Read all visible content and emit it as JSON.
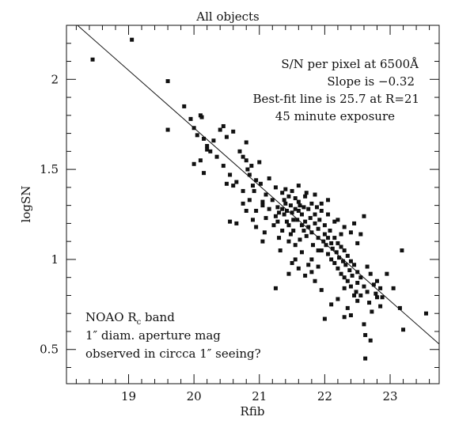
{
  "chart_data": {
    "type": "scatter",
    "title": "All objects",
    "xlabel": "Rfib",
    "ylabel": "logSN",
    "xlim": [
      18.05,
      23.75
    ],
    "ylim": [
      0.31,
      2.3
    ],
    "xticks": [
      19,
      20,
      21,
      22,
      23
    ],
    "yticks": [
      0.5,
      1,
      1.5,
      2
    ],
    "xtick_labels": [
      "19",
      "20",
      "21",
      "22",
      "23"
    ],
    "ytick_labels": [
      "0.5",
      "1",
      "1.5",
      "2"
    ],
    "grid": false,
    "annotations_top_right": [
      "S/N per pixel at 6500Å",
      "Slope is −0.32",
      "Best-fit line is 25.7 at R=21",
      "45 minute exposure"
    ],
    "annotations_bottom_left": {
      "line1_prefix": "NOAO R",
      "line1_subscript": "c",
      "line1_suffix": " band",
      "line2": "1″ diam. aperture mag",
      "line3": "observed in circca 1″ seeing?"
    },
    "fit_line": {
      "slope": -0.32,
      "intercept_at_21": 1.41,
      "from_x": 18.05,
      "to_x": 23.75
    },
    "points": [
      [
        18.45,
        2.11
      ],
      [
        19.05,
        2.22
      ],
      [
        19.6,
        1.99
      ],
      [
        19.6,
        1.72
      ],
      [
        19.85,
        1.85
      ],
      [
        19.95,
        1.78
      ],
      [
        20.0,
        1.73
      ],
      [
        20.1,
        1.8
      ],
      [
        20.12,
        1.79
      ],
      [
        20.05,
        1.69
      ],
      [
        20.15,
        1.67
      ],
      [
        20.2,
        1.63
      ],
      [
        20.25,
        1.6
      ],
      [
        20.1,
        1.55
      ],
      [
        20.0,
        1.53
      ],
      [
        20.15,
        1.48
      ],
      [
        20.4,
        1.72
      ],
      [
        20.45,
        1.74
      ],
      [
        20.5,
        1.68
      ],
      [
        20.5,
        1.42
      ],
      [
        20.6,
        1.41
      ],
      [
        20.6,
        1.71
      ],
      [
        20.7,
        1.6
      ],
      [
        20.75,
        1.57
      ],
      [
        20.8,
        1.65
      ],
      [
        20.8,
        1.55
      ],
      [
        20.82,
        1.5
      ],
      [
        20.85,
        1.47
      ],
      [
        20.88,
        1.52
      ],
      [
        20.9,
        1.41
      ],
      [
        20.92,
        1.38
      ],
      [
        20.95,
        1.44
      ],
      [
        20.55,
        1.21
      ],
      [
        20.65,
        1.2
      ],
      [
        20.75,
        1.31
      ],
      [
        20.8,
        1.27
      ],
      [
        20.9,
        1.22
      ],
      [
        20.95,
        1.18
      ],
      [
        21.0,
        1.54
      ],
      [
        21.02,
        1.42
      ],
      [
        21.05,
        1.3
      ],
      [
        21.05,
        1.1
      ],
      [
        21.08,
        1.15
      ],
      [
        21.1,
        1.23
      ],
      [
        21.1,
        1.36
      ],
      [
        21.15,
        1.45
      ],
      [
        21.2,
        1.33
      ],
      [
        21.22,
        1.19
      ],
      [
        21.25,
        1.4
      ],
      [
        21.28,
        1.29
      ],
      [
        21.3,
        1.26
      ],
      [
        21.3,
        1.12
      ],
      [
        21.32,
        1.05
      ],
      [
        21.35,
        1.37
      ],
      [
        21.35,
        1.28
      ],
      [
        21.38,
        1.25
      ],
      [
        21.4,
        1.39
      ],
      [
        21.4,
        1.31
      ],
      [
        21.42,
        1.27
      ],
      [
        21.42,
        1.21
      ],
      [
        21.45,
        1.35
      ],
      [
        21.45,
        1.19
      ],
      [
        21.48,
        1.3
      ],
      [
        21.5,
        1.26
      ],
      [
        21.5,
        1.38
      ],
      [
        21.52,
        1.16
      ],
      [
        21.55,
        1.28
      ],
      [
        21.55,
        1.34
      ],
      [
        21.58,
        1.22
      ],
      [
        21.6,
        1.32
      ],
      [
        21.6,
        1.27
      ],
      [
        21.62,
        1.11
      ],
      [
        21.65,
        1.25
      ],
      [
        21.65,
        1.19
      ],
      [
        21.68,
        1.29
      ],
      [
        21.7,
        1.35
      ],
      [
        21.7,
        1.21
      ],
      [
        21.72,
        1.13
      ],
      [
        21.75,
        1.28
      ],
      [
        21.75,
        1.18
      ],
      [
        21.78,
        1.23
      ],
      [
        21.8,
        1.31
      ],
      [
        21.8,
        1.15
      ],
      [
        21.82,
        1.08
      ],
      [
        21.85,
        1.25
      ],
      [
        21.85,
        1.2
      ],
      [
        21.88,
        1.29
      ],
      [
        21.9,
        1.17
      ],
      [
        21.9,
        1.12
      ],
      [
        21.92,
        1.22
      ],
      [
        21.95,
        1.27
      ],
      [
        21.95,
        1.05
      ],
      [
        21.98,
        1.1
      ],
      [
        22.0,
        1.19
      ],
      [
        22.0,
        1.14
      ],
      [
        22.02,
        1.08
      ],
      [
        22.05,
        1.12
      ],
      [
        22.05,
        1.03
      ],
      [
        22.08,
        1.16
      ],
      [
        22.1,
        1.09
      ],
      [
        22.1,
        1.0
      ],
      [
        22.12,
        1.06
      ],
      [
        22.15,
        1.12
      ],
      [
        22.15,
        0.98
      ],
      [
        22.18,
        1.04
      ],
      [
        22.2,
        1.09
      ],
      [
        22.2,
        0.95
      ],
      [
        22.22,
        1.01
      ],
      [
        22.25,
        1.07
      ],
      [
        22.25,
        0.92
      ],
      [
        22.28,
        0.99
      ],
      [
        22.3,
        1.05
      ],
      [
        22.3,
        0.9
      ],
      [
        22.32,
        0.97
      ],
      [
        22.35,
        1.02
      ],
      [
        22.35,
        0.88
      ],
      [
        22.38,
        0.94
      ],
      [
        22.4,
        0.99
      ],
      [
        22.4,
        0.85
      ],
      [
        22.42,
        0.91
      ],
      [
        22.45,
        0.97
      ],
      [
        22.48,
        0.82
      ],
      [
        22.5,
        0.93
      ],
      [
        22.5,
        0.87
      ],
      [
        22.55,
        0.9
      ],
      [
        22.55,
        0.8
      ],
      [
        22.6,
        0.85
      ],
      [
        22.6,
        0.64
      ],
      [
        22.62,
        0.58
      ],
      [
        22.65,
        0.82
      ],
      [
        22.68,
        0.76
      ],
      [
        22.7,
        0.55
      ],
      [
        22.75,
        0.86
      ],
      [
        22.78,
        0.81
      ],
      [
        22.8,
        0.79
      ],
      [
        22.85,
        0.84
      ],
      [
        22.88,
        0.79
      ],
      [
        22.95,
        0.92
      ],
      [
        23.05,
        0.84
      ],
      [
        23.15,
        0.73
      ],
      [
        23.2,
        0.61
      ],
      [
        23.18,
        1.05
      ],
      [
        23.55,
        0.7
      ],
      [
        22.62,
        0.45
      ],
      [
        21.25,
        0.84
      ],
      [
        21.45,
        0.92
      ],
      [
        21.5,
        0.98
      ],
      [
        21.55,
        1.0
      ],
      [
        21.6,
        0.95
      ],
      [
        21.7,
        0.91
      ],
      [
        21.75,
        0.97
      ],
      [
        21.8,
        0.93
      ],
      [
        21.85,
        0.88
      ],
      [
        21.9,
        0.96
      ],
      [
        21.95,
        0.83
      ],
      [
        22.0,
        0.67
      ],
      [
        22.1,
        0.75
      ],
      [
        22.2,
        0.78
      ],
      [
        22.3,
        0.84
      ],
      [
        22.4,
        0.69
      ],
      [
        22.45,
        0.8
      ],
      [
        22.5,
        0.77
      ],
      [
        22.35,
        0.73
      ],
      [
        22.25,
        1.14
      ],
      [
        22.4,
        1.15
      ],
      [
        22.5,
        1.09
      ],
      [
        22.6,
        1.24
      ],
      [
        22.55,
        1.14
      ],
      [
        22.45,
        1.2
      ],
      [
        22.3,
        1.18
      ],
      [
        22.2,
        1.22
      ],
      [
        22.05,
        1.25
      ],
      [
        21.9,
        1.05
      ],
      [
        21.8,
        1.0
      ],
      [
        21.65,
        1.04
      ],
      [
        21.55,
        1.08
      ],
      [
        21.45,
        1.1
      ],
      [
        21.35,
        1.16
      ],
      [
        21.25,
        1.24
      ],
      [
        21.15,
        1.28
      ],
      [
        21.05,
        1.32
      ],
      [
        20.95,
        1.27
      ],
      [
        20.85,
        1.33
      ],
      [
        20.75,
        1.38
      ],
      [
        20.65,
        1.43
      ],
      [
        20.55,
        1.47
      ],
      [
        20.45,
        1.52
      ],
      [
        20.35,
        1.57
      ],
      [
        20.3,
        1.66
      ],
      [
        20.2,
        1.61
      ],
      [
        22.65,
        0.96
      ],
      [
        22.7,
        0.92
      ],
      [
        22.72,
        0.71
      ],
      [
        22.8,
        0.88
      ],
      [
        22.85,
        0.74
      ],
      [
        22.3,
        0.68
      ],
      [
        21.6,
        1.41
      ],
      [
        21.72,
        1.37
      ],
      [
        21.85,
        1.36
      ],
      [
        21.95,
        1.31
      ],
      [
        22.05,
        1.33
      ],
      [
        22.15,
        1.21
      ],
      [
        21.68,
        1.16
      ],
      [
        21.52,
        1.22
      ],
      [
        21.38,
        1.33
      ],
      [
        21.28,
        1.21
      ],
      [
        21.48,
        1.14
      ],
      [
        21.62,
        1.3
      ]
    ]
  }
}
